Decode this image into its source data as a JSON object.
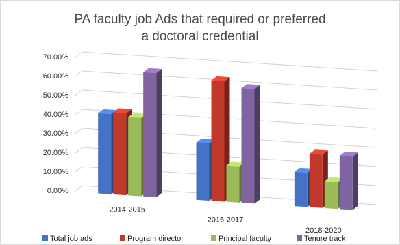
{
  "chart_data": {
    "type": "bar",
    "title_lines": [
      "PA faculty job Ads that required  or  preferred",
      "a doctoral credential"
    ],
    "categories": [
      "2014-2015",
      "2016-2017",
      "2018-2020"
    ],
    "series": [
      {
        "name": "Total job ads",
        "values": [
          42,
          30,
          18
        ],
        "color": "#4472c4"
      },
      {
        "name": "Program director",
        "values": [
          43,
          63,
          28
        ],
        "color": "#c0392b"
      },
      {
        "name": "Principal faculty",
        "values": [
          41,
          19,
          14
        ],
        "color": "#9bbb59"
      },
      {
        "name": "Tenure track",
        "values": [
          65,
          60,
          28
        ],
        "color": "#8064a2"
      }
    ],
    "yticks": [
      "0.00%",
      "10.00%",
      "20.00%",
      "30.00%",
      "40.00%",
      "50.00%",
      "60.00%",
      "70.00%"
    ],
    "ylim": [
      0,
      70
    ],
    "legend_position": "bottom",
    "gridlines": true
  }
}
